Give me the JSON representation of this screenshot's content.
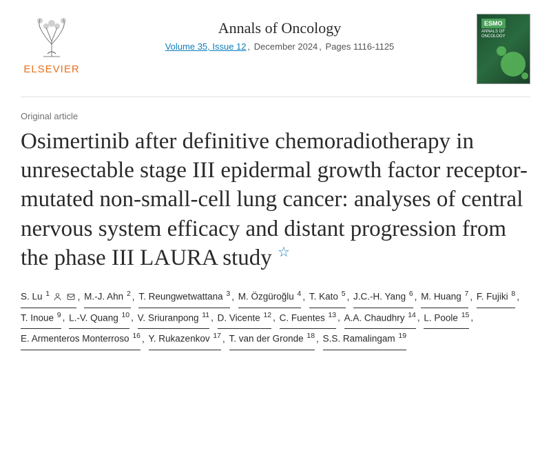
{
  "publisher": {
    "name": "ELSEVIER",
    "brand_color": "#e9711c"
  },
  "journal": {
    "name": "Annals of Oncology",
    "volume_issue": "Volume 35, Issue 12",
    "date": "December 2024",
    "pages": "Pages 1116-1125",
    "cover_badge": "ESMO",
    "cover_journal": "ANNALS OF ONCOLOGY",
    "link_color": "#0c7dbb"
  },
  "article": {
    "type": "Original article",
    "title": "Osimertinib after definitive chemoradiotherapy in unresectable stage III epidermal growth factor receptor-mutated non-small-cell lung cancer: analyses of central nervous system efficacy and distant progression from the phase III LAURA study"
  },
  "authors": [
    {
      "name": "S. Lu",
      "aff": "1",
      "person_icon": true,
      "mail_icon": true
    },
    {
      "name": "M.-J. Ahn",
      "aff": "2"
    },
    {
      "name": "T. Reungwetwattana",
      "aff": "3"
    },
    {
      "name": "M. Özgüroğlu",
      "aff": "4"
    },
    {
      "name": "T. Kato",
      "aff": "5"
    },
    {
      "name": "J.C.-H. Yang",
      "aff": "6"
    },
    {
      "name": "M. Huang",
      "aff": "7"
    },
    {
      "name": "F. Fujiki",
      "aff": "8"
    },
    {
      "name": "T. Inoue",
      "aff": "9"
    },
    {
      "name": "L.-V. Quang",
      "aff": "10"
    },
    {
      "name": "V. Sriuranpong",
      "aff": "11"
    },
    {
      "name": "D. Vicente",
      "aff": "12"
    },
    {
      "name": "C. Fuentes",
      "aff": "13"
    },
    {
      "name": "A.A. Chaudhry",
      "aff": "14"
    },
    {
      "name": "L. Poole",
      "aff": "15"
    },
    {
      "name": "E. Armenteros Monterroso",
      "aff": "16"
    },
    {
      "name": "Y. Rukazenkov",
      "aff": "17"
    },
    {
      "name": "T. van der Gronde",
      "aff": "18"
    },
    {
      "name": "S.S. Ramalingam",
      "aff": "19"
    }
  ]
}
